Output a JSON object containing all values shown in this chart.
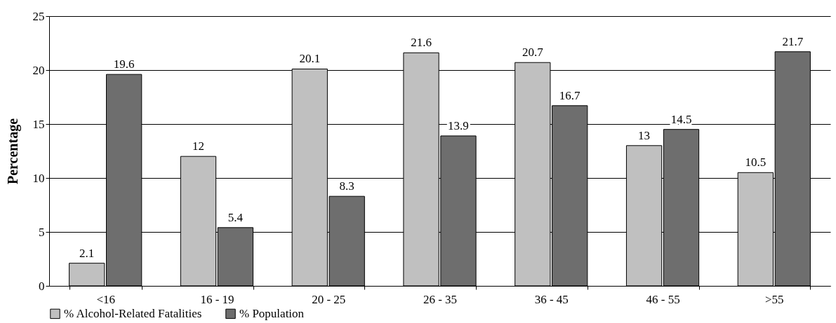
{
  "chart_data": {
    "type": "bar",
    "ylabel": "Percentage",
    "categories": [
      "<16",
      "16 - 19",
      "20 - 25",
      "26 - 35",
      "36 - 45",
      "46 - 55",
      ">55"
    ],
    "series": [
      {
        "name": "% Alcohol-Related Fatalities",
        "color": "#c0c0c0",
        "values": [
          2.1,
          12,
          20.1,
          21.6,
          20.7,
          13,
          10.5
        ]
      },
      {
        "name": "% Population",
        "color": "#6e6e6e",
        "values": [
          19.6,
          5.4,
          8.3,
          13.9,
          16.7,
          14.5,
          21.7
        ]
      }
    ],
    "ylim": [
      0,
      25
    ],
    "yticks": [
      0,
      5,
      10,
      15,
      20,
      25
    ],
    "grid": "y",
    "legend": "bottom",
    "data_labels": true
  }
}
